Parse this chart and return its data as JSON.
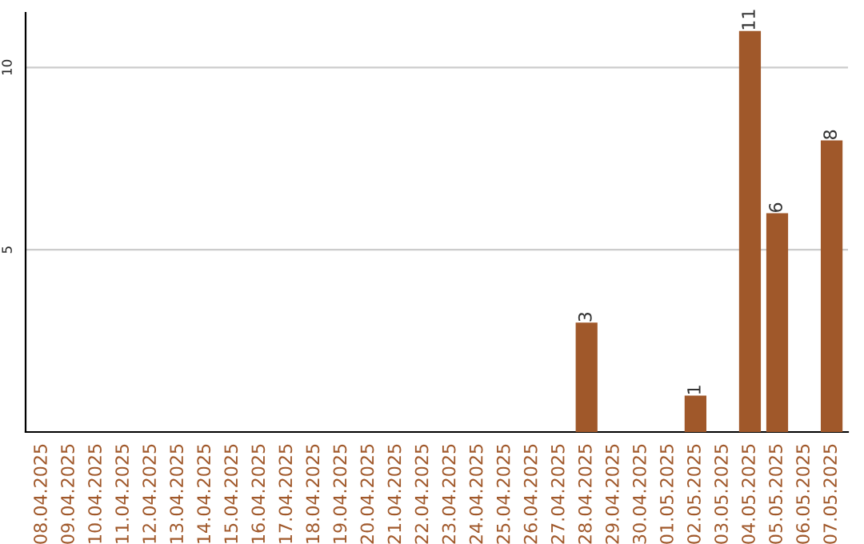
{
  "chart_data": {
    "type": "bar",
    "categories": [
      "08.04.2025",
      "09.04.2025",
      "10.04.2025",
      "11.04.2025",
      "12.04.2025",
      "13.04.2025",
      "14.04.2025",
      "15.04.2025",
      "16.04.2025",
      "17.04.2025",
      "18.04.2025",
      "19.04.2025",
      "20.04.2025",
      "21.04.2025",
      "22.04.2025",
      "23.04.2025",
      "24.04.2025",
      "25.04.2025",
      "26.04.2025",
      "27.04.2025",
      "28.04.2025",
      "29.04.2025",
      "30.04.2025",
      "01.05.2025",
      "02.05.2025",
      "03.05.2025",
      "04.05.2025",
      "05.05.2025",
      "06.05.2025",
      "07.05.2025"
    ],
    "values": [
      null,
      null,
      null,
      null,
      null,
      null,
      null,
      null,
      null,
      null,
      null,
      null,
      null,
      null,
      null,
      null,
      null,
      null,
      null,
      null,
      3,
      null,
      null,
      null,
      1,
      null,
      11,
      6,
      null,
      8
    ],
    "value_labels": [
      null,
      null,
      null,
      null,
      null,
      null,
      null,
      null,
      null,
      null,
      null,
      null,
      null,
      null,
      null,
      null,
      null,
      null,
      null,
      null,
      "3",
      null,
      null,
      null,
      "1",
      null,
      "11",
      "6",
      null,
      "8"
    ],
    "color": "#a0582a",
    "ylim": [
      0,
      11.5
    ],
    "yticks": [
      5,
      10
    ],
    "grid": "y",
    "legend": false
  }
}
